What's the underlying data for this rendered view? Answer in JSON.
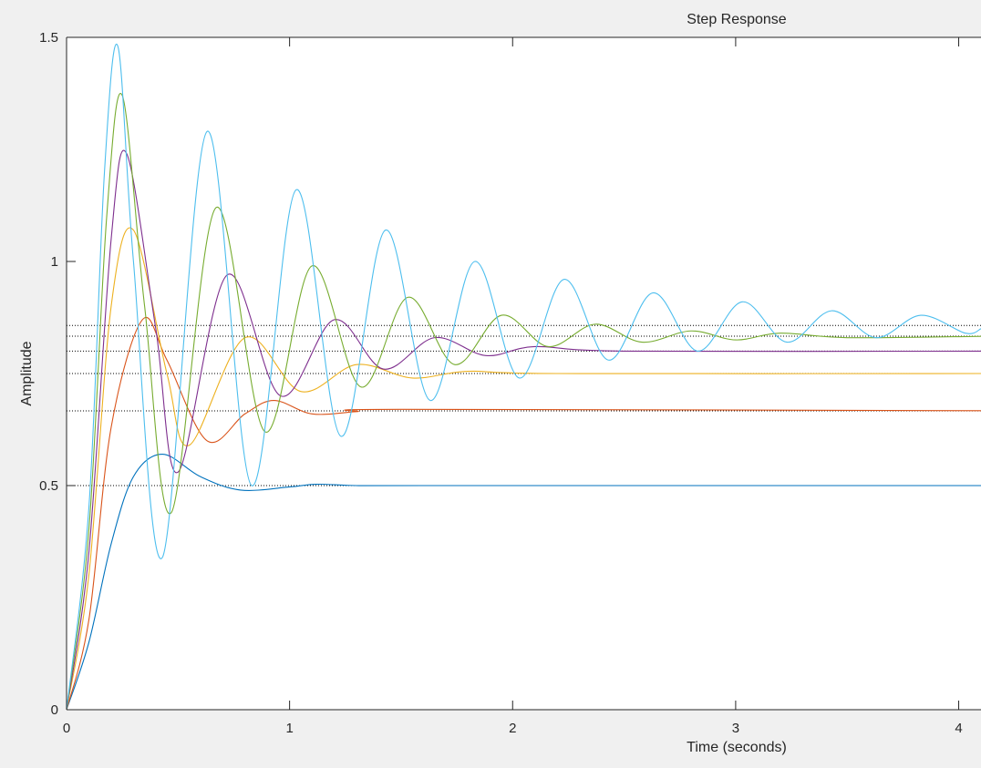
{
  "window": {
    "background": "#f0f0f0"
  },
  "chart_data": {
    "type": "line",
    "title": "Step Response",
    "xlabel": "Time (seconds)",
    "ylabel": "Amplitude",
    "xlim": [
      0,
      4.1
    ],
    "ylim": [
      0,
      1.5
    ],
    "xticks": [
      {
        "value": 0,
        "label": "0"
      },
      {
        "value": 1,
        "label": "1"
      },
      {
        "value": 2,
        "label": "2"
      },
      {
        "value": 3,
        "label": "3"
      },
      {
        "value": 4,
        "label": "4"
      }
    ],
    "yticks": [
      {
        "value": 0,
        "label": "0"
      },
      {
        "value": 0.5,
        "label": "0.5"
      },
      {
        "value": 1,
        "label": "1"
      },
      {
        "value": 1.5,
        "label": "1.5"
      }
    ],
    "grid": false,
    "legend": "none",
    "steady_state_reference_lines": [
      0.5,
      0.6667,
      0.75,
      0.8,
      0.8333,
      0.8571
    ],
    "series": [
      {
        "color": "#0072bd",
        "steady_state": 0.5,
        "x": [
          0,
          0.1,
          0.2,
          0.3,
          0.43,
          0.6,
          0.78,
          1.0,
          1.12,
          1.3,
          1.6,
          4.1
        ],
        "y": [
          0,
          0.15,
          0.37,
          0.52,
          0.57,
          0.52,
          0.49,
          0.497,
          0.503,
          0.5,
          0.5,
          0.5
        ]
      },
      {
        "color": "#d95319",
        "steady_state": 0.6667,
        "x": [
          0,
          0.1,
          0.2,
          0.34,
          0.45,
          0.63,
          0.8,
          0.93,
          1.1,
          1.3,
          1.5,
          4.1
        ],
        "y": [
          0,
          0.2,
          0.63,
          0.87,
          0.78,
          0.6,
          0.66,
          0.69,
          0.66,
          0.665,
          0.67,
          0.667
        ]
      },
      {
        "color": "#edb120",
        "steady_state": 0.75,
        "x": [
          0,
          0.1,
          0.2,
          0.3,
          0.45,
          0.55,
          0.8,
          1.05,
          1.3,
          1.55,
          1.8,
          2.2,
          4.1
        ],
        "y": [
          0,
          0.3,
          0.9,
          1.07,
          0.75,
          0.59,
          0.83,
          0.71,
          0.77,
          0.74,
          0.755,
          0.75,
          0.75
        ]
      },
      {
        "color": "#7e2f8e",
        "steady_state": 0.8,
        "x": [
          0,
          0.1,
          0.2,
          0.27,
          0.4,
          0.5,
          0.72,
          0.96,
          1.2,
          1.42,
          1.65,
          1.88,
          2.1,
          2.5,
          4.1
        ],
        "y": [
          0,
          0.35,
          1.05,
          1.24,
          0.85,
          0.53,
          0.97,
          0.7,
          0.87,
          0.76,
          0.83,
          0.79,
          0.81,
          0.8,
          0.8
        ]
      },
      {
        "color": "#77ac30",
        "steady_state": 0.8333,
        "x": [
          0,
          0.1,
          0.18,
          0.25,
          0.35,
          0.47,
          0.67,
          0.89,
          1.1,
          1.32,
          1.53,
          1.74,
          1.95,
          2.16,
          2.37,
          2.58,
          2.8,
          3.0,
          3.2,
          3.5,
          4.1
        ],
        "y": [
          0,
          0.4,
          1.1,
          1.37,
          0.9,
          0.44,
          1.12,
          0.62,
          0.99,
          0.72,
          0.92,
          0.77,
          0.88,
          0.81,
          0.86,
          0.82,
          0.845,
          0.825,
          0.84,
          0.83,
          0.833
        ]
      },
      {
        "color": "#4dbeee",
        "steady_state": 0.8571,
        "x": [
          0,
          0.1,
          0.17,
          0.23,
          0.3,
          0.43,
          0.63,
          0.83,
          1.03,
          1.23,
          1.43,
          1.63,
          1.83,
          2.03,
          2.23,
          2.43,
          2.63,
          2.83,
          3.03,
          3.23,
          3.43,
          3.63,
          3.83,
          4.03,
          4.1
        ],
        "y": [
          0,
          0.45,
          1.2,
          1.48,
          1.0,
          0.34,
          1.29,
          0.5,
          1.16,
          0.61,
          1.07,
          0.69,
          1.0,
          0.74,
          0.96,
          0.78,
          0.93,
          0.8,
          0.91,
          0.82,
          0.89,
          0.83,
          0.88,
          0.84,
          0.85
        ]
      }
    ]
  }
}
